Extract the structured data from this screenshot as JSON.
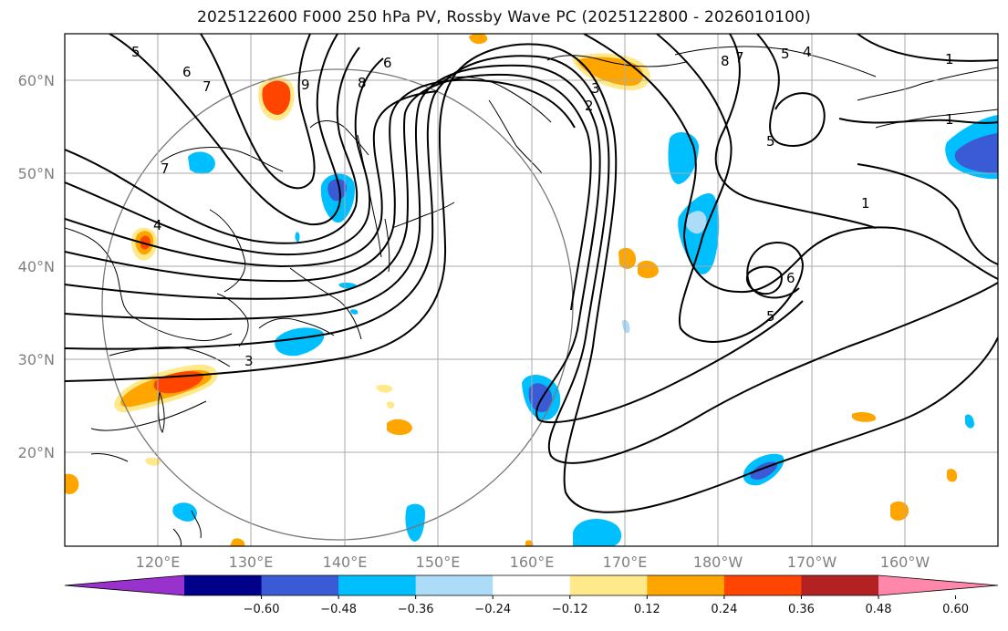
{
  "title": "2025122600 F000 250 hPa PV, Rossby Wave PC (2025122800 - 2026010100)",
  "lat_labels": [
    "60°N",
    "50°N",
    "40°N",
    "30°N",
    "20°N"
  ],
  "lon_labels": [
    "120°E",
    "130°E",
    "140°E",
    "150°E",
    "160°E",
    "170°E",
    "180°W",
    "170°W",
    "160°W"
  ],
  "colorbar": {
    "ticks": [
      "−0.60",
      "−0.48",
      "−0.36",
      "−0.24",
      "−0.12",
      "0.12",
      "0.24",
      "0.36",
      "0.48",
      "0.60"
    ],
    "colors": [
      "#9932CC",
      "#00008B",
      "#3B5BD6",
      "#00BFFF",
      "#ADDCF8",
      "#FFFFFF",
      "#FFE98A",
      "#FFA500",
      "#FF4500",
      "#B22222",
      "#FF88AA"
    ]
  },
  "contour_labels": [
    "1",
    "1",
    "1",
    "2",
    "3",
    "3",
    "4",
    "4",
    "5",
    "5",
    "5",
    "5",
    "6",
    "6",
    "6",
    "7",
    "7",
    "7",
    "8",
    "8",
    "9"
  ]
}
